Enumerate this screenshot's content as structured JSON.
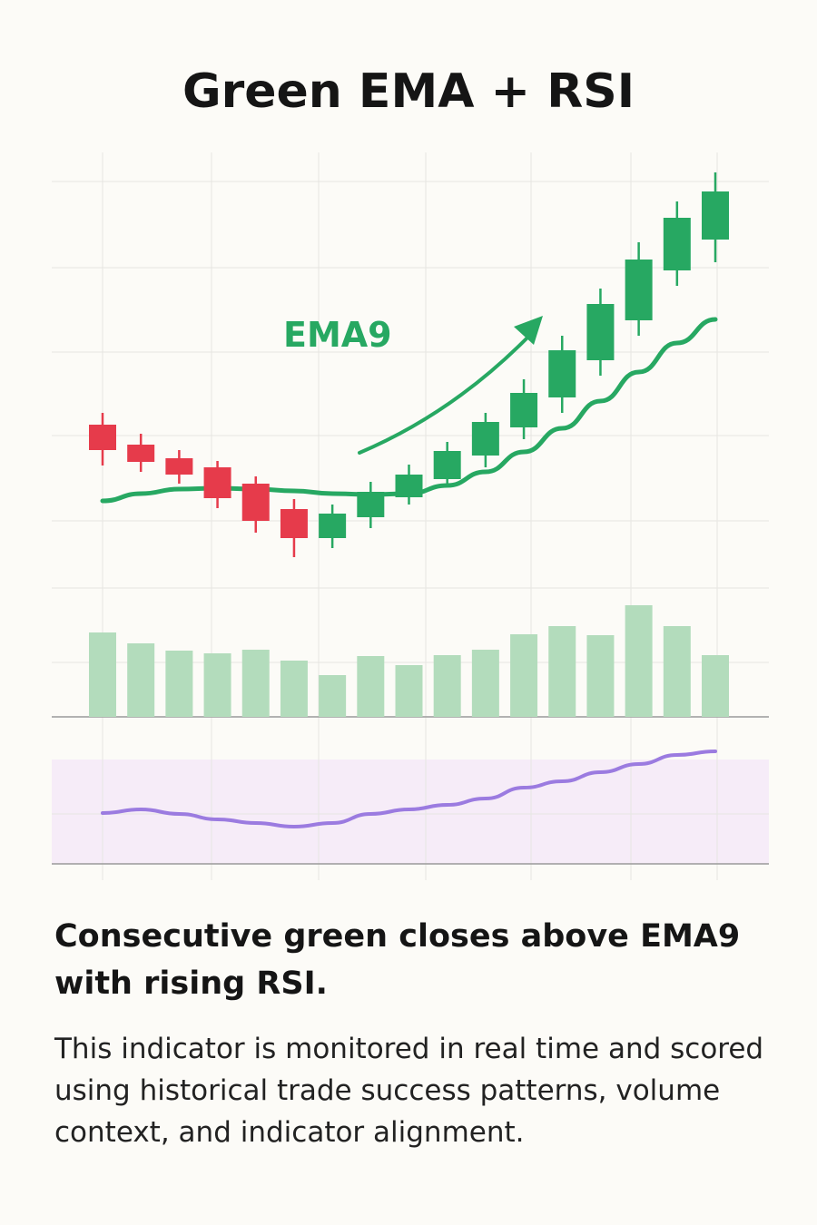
{
  "title": "Green EMA + RSI",
  "chart_data": [
    {
      "type": "candlestick",
      "open": [
        232,
        210,
        195,
        185,
        167,
        139,
        107,
        130,
        152,
        172,
        198,
        229,
        262,
        303,
        347,
        402,
        436
      ],
      "high": [
        245,
        222,
        204,
        192,
        175,
        150,
        144,
        169,
        188,
        213,
        245,
        282,
        330,
        382,
        433,
        478,
        510
      ],
      "low": [
        187,
        180,
        167,
        140,
        113,
        86,
        96,
        118,
        144,
        163,
        185,
        216,
        245,
        286,
        330,
        385,
        411
      ],
      "close": [
        204,
        191,
        177,
        151,
        126,
        107,
        134,
        158,
        177,
        203,
        235,
        267,
        314,
        365,
        414,
        460,
        489
      ],
      "up_color": "#27a862",
      "down_color": "#e63b4b",
      "series": [
        {
          "name": "EMA9",
          "color": "#27a862",
          "values": [
            148,
            156,
            161,
            162,
            161,
            159,
            156,
            155,
            156,
            165,
            180,
            202,
            228,
            258,
            290,
            322,
            348
          ]
        }
      ]
    },
    {
      "type": "bar",
      "color": "#b3dcbc",
      "values": [
        93,
        81,
        73,
        70,
        74,
        62,
        46,
        67,
        57,
        68,
        74,
        91,
        100,
        90,
        123,
        100,
        68
      ]
    },
    {
      "type": "line",
      "band_color": "#f6ecf8",
      "series": [
        {
          "color": "#9b7be0",
          "values": [
            64,
            68,
            63,
            57,
            53,
            49,
            53,
            63,
            68,
            73,
            80,
            92,
            99,
            109,
            118,
            128,
            132
          ]
        }
      ]
    }
  ],
  "headline": [
    "Consecutive green closes above EMA9",
    "with rising RSI."
  ],
  "body": [
    "This indicator is monitored in real time and scored",
    "using historical trade success patterns, volume",
    "context, and indicator alignment."
  ]
}
